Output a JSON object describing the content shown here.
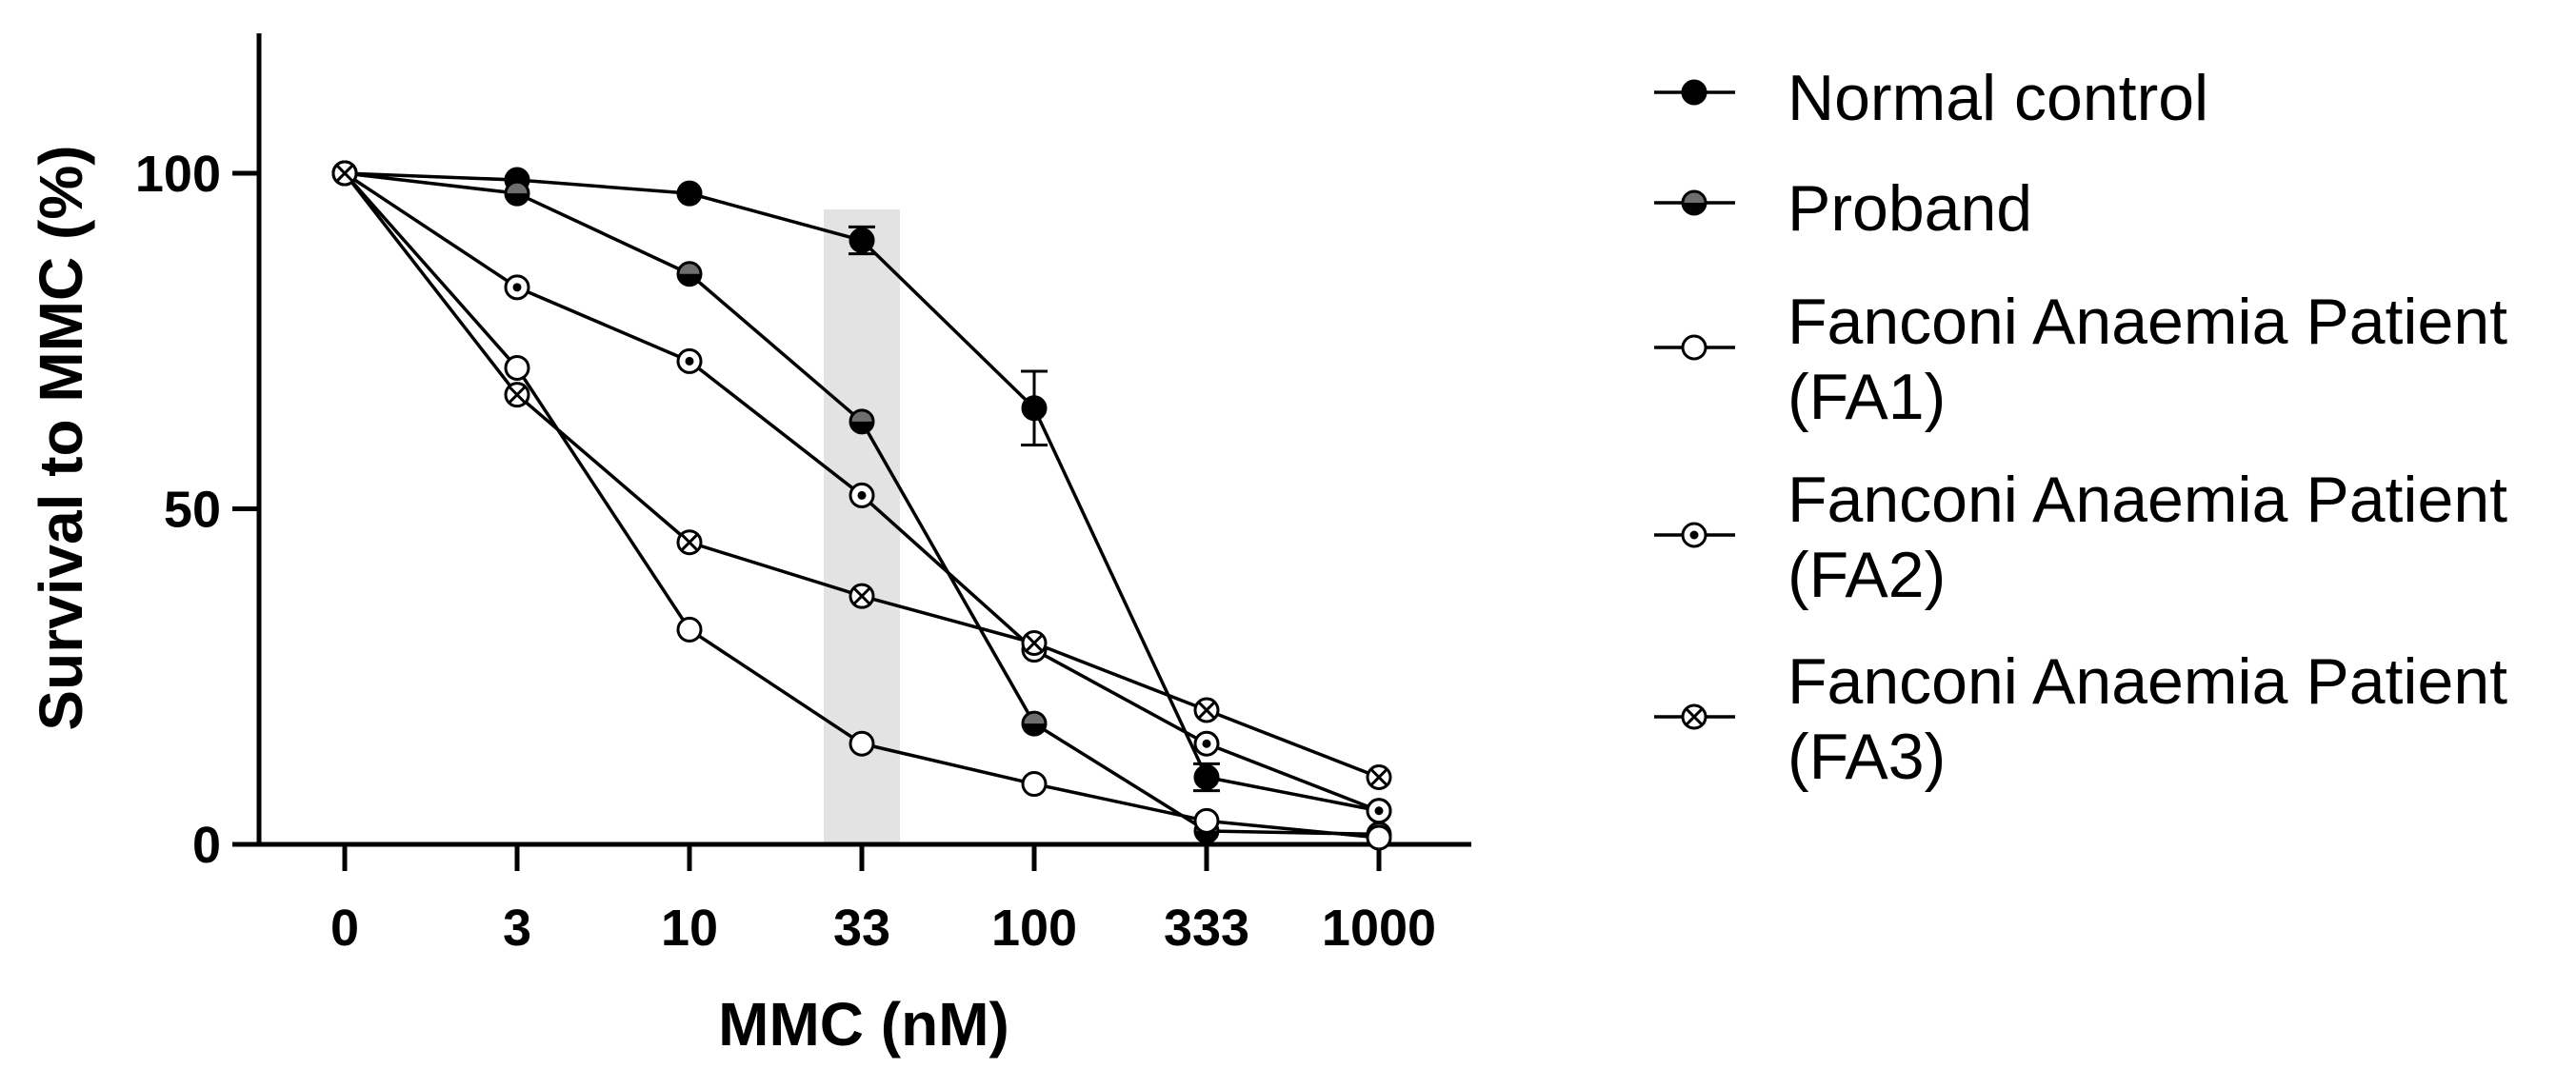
{
  "chart_data": {
    "type": "line",
    "title": "",
    "xlabel": "MMC (nM)",
    "ylabel": "Survival to MMC (%)",
    "x_scale": "categorical",
    "categories": [
      "0",
      "3",
      "10",
      "33",
      "100",
      "333",
      "1000"
    ],
    "ylim": [
      0,
      120
    ],
    "yticks": [
      0,
      50,
      100
    ],
    "highlight_category": "33",
    "grid": false,
    "legend_position": "right",
    "series": [
      {
        "name": "Normal control",
        "label_lines": [
          "Normal control"
        ],
        "marker": "filled",
        "values": [
          100,
          99,
          97,
          90,
          65,
          10,
          5
        ],
        "errors": [
          0,
          0,
          0,
          2,
          5.5,
          2,
          0
        ]
      },
      {
        "name": "Proband",
        "label_lines": [
          "Proband"
        ],
        "marker": "half",
        "values": [
          100,
          97,
          85,
          63,
          18,
          2,
          1.5
        ],
        "errors": [
          0,
          0,
          0,
          0,
          0,
          0,
          0
        ]
      },
      {
        "name": "Fanconi Anaemia Patient (FA1)",
        "label_lines": [
          "Fanconi Anaemia Patient",
          "(FA1)"
        ],
        "marker": "open",
        "values": [
          100,
          71,
          32,
          15,
          9,
          3.5,
          1
        ],
        "errors": [
          0,
          0,
          0,
          0,
          0,
          0,
          0
        ]
      },
      {
        "name": "Fanconi Anaemia Patient (FA2)",
        "label_lines": [
          "Fanconi Anaemia Patient",
          "(FA2)"
        ],
        "marker": "dot",
        "values": [
          100,
          83,
          72,
          52,
          29,
          15,
          5
        ],
        "errors": [
          0,
          0,
          0,
          0,
          0,
          0,
          0
        ]
      },
      {
        "name": "Fanconi Anaemia Patient (FA3)",
        "label_lines": [
          "Fanconi Anaemia Patient",
          "(FA3)"
        ],
        "marker": "cross",
        "values": [
          100,
          67,
          45,
          37,
          30,
          20,
          10
        ],
        "errors": [
          0,
          0,
          0,
          0,
          0,
          0,
          0
        ]
      }
    ]
  }
}
